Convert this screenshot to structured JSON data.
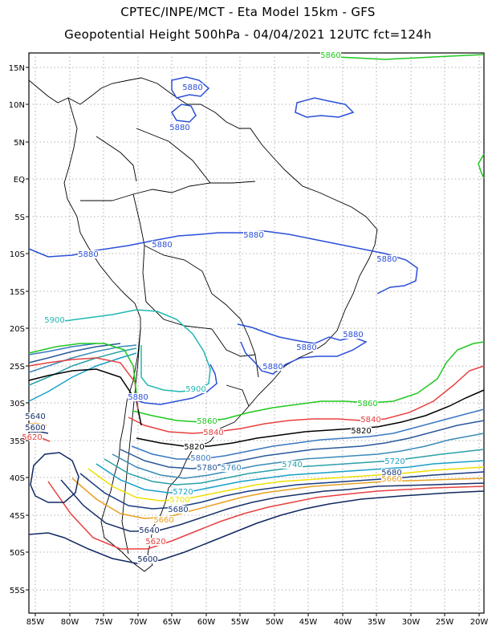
{
  "header": {
    "line1": "CPTEC/INPE/MCT -  Eta Model 15km - GFS",
    "line2": "Geopotential Height 500hPa - 04/04/2021 12UTC fct=124h"
  },
  "axes": {
    "lon_labels": [
      "85W",
      "80W",
      "75W",
      "70W",
      "65W",
      "60W",
      "55W",
      "50W",
      "45W",
      "40W",
      "35W",
      "30W",
      "25W",
      "20W"
    ],
    "lat_labels": [
      "15N",
      "10N",
      "5N",
      "EQ",
      "5S",
      "10S",
      "15S",
      "20S",
      "25S",
      "30S",
      "35S",
      "40S",
      "45S",
      "50S",
      "55S"
    ]
  },
  "colors": {
    "5900": "#20b8b0",
    "5880": "#2a4fd8",
    "5860": "#1ec81e",
    "5840": "#e84040",
    "5820": "#000000",
    "5800": "#3a78c0",
    "5780": "#2a5a9a",
    "5760": "#3a8ab8",
    "5740": "#2aa0a8",
    "5720": "#1aa0c8",
    "5700": "#f0e000",
    "5680": "#1a3a80",
    "5660": "#e8a020",
    "5640": "#18306a",
    "5620": "#e84040",
    "5600": "#102860"
  },
  "contour_labels": [
    {
      "v": "5880",
      "n": "label-5880-caribbean"
    },
    {
      "v": "5880",
      "n": "label-5880-venezuela"
    },
    {
      "v": "5880",
      "n": "label-5880-peru"
    },
    {
      "v": "5880",
      "n": "label-5880-west"
    },
    {
      "v": "5880",
      "n": "label-5880-brazil"
    },
    {
      "v": "5880",
      "n": "label-5880-east"
    },
    {
      "v": "5880",
      "n": "label-5880-se-1"
    },
    {
      "v": "5880",
      "n": "label-5880-se-2"
    },
    {
      "v": "5880",
      "n": "label-5880-paraguay"
    },
    {
      "v": "5880",
      "n": "label-5880-chile"
    },
    {
      "v": "5900",
      "n": "label-5900-north"
    },
    {
      "v": "5900",
      "n": "label-5900-south"
    },
    {
      "v": "5860",
      "n": "label-5860-top"
    },
    {
      "v": "5860",
      "n": "label-5860-west"
    },
    {
      "v": "5860",
      "n": "label-5860-east"
    },
    {
      "v": "5840",
      "n": "label-5840-west"
    },
    {
      "v": "5840",
      "n": "label-5840-east"
    },
    {
      "v": "5820",
      "n": "label-5820-west"
    },
    {
      "v": "5820",
      "n": "label-5820-east"
    },
    {
      "v": "5800",
      "n": "label-5800"
    },
    {
      "v": "5780",
      "n": "label-5780"
    },
    {
      "v": "5760",
      "n": "label-5760"
    },
    {
      "v": "5740",
      "n": "label-5740"
    },
    {
      "v": "5720",
      "n": "label-5720-west"
    },
    {
      "v": "5720",
      "n": "label-5720-east"
    },
    {
      "v": "5700",
      "n": "label-5700-west"
    },
    {
      "v": "5680",
      "n": "label-5680-west"
    },
    {
      "v": "5680",
      "n": "label-5680-east"
    },
    {
      "v": "5660",
      "n": "label-5660-east"
    },
    {
      "v": "5660",
      "n": "label-5660-south"
    },
    {
      "v": "5640",
      "n": "label-5640-west"
    },
    {
      "v": "5640",
      "n": "label-5640-south"
    },
    {
      "v": "5620",
      "n": "label-5620-west"
    },
    {
      "v": "5620",
      "n": "label-5620-south"
    },
    {
      "v": "5600",
      "n": "label-5600-low"
    },
    {
      "v": "5600",
      "n": "label-5600-south"
    }
  ]
}
